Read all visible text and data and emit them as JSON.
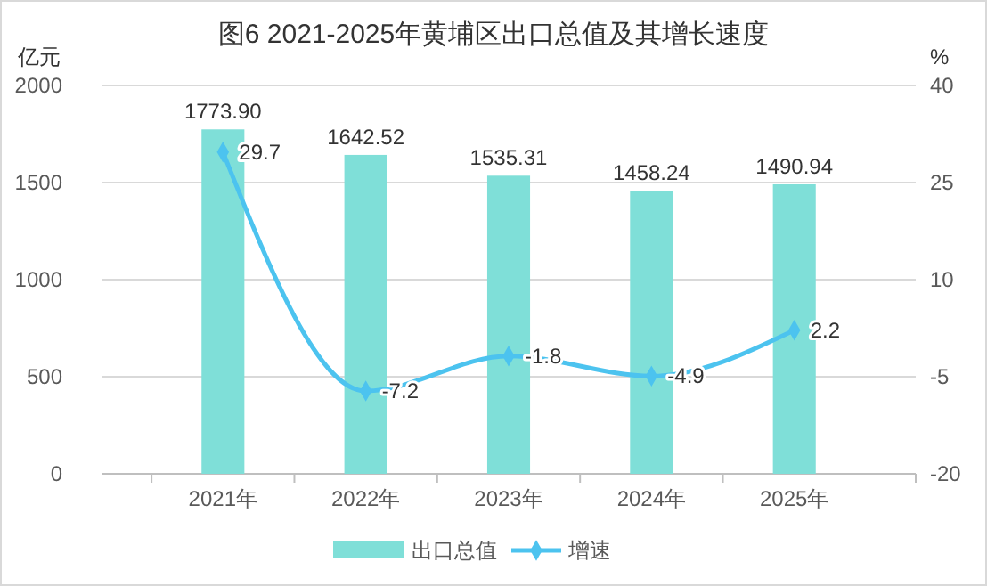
{
  "chart_data": {
    "type": "bar",
    "title": "图6  2021-2025年黄埔区出口总值及其增长速度",
    "ylabel": "亿元",
    "y2label": "%",
    "categories": [
      "2021年",
      "2022年",
      "2023年",
      "2024年",
      "2025年"
    ],
    "series": [
      {
        "name": "出口总值",
        "color": "#7fdfd8",
        "values": [
          1773.9,
          1642.52,
          1535.31,
          1458.24,
          1490.94
        ],
        "value_labels": [
          "1773.90",
          "1642.52",
          "1535.31",
          "1458.24",
          "1490.94"
        ]
      },
      {
        "name": "增速",
        "type": "line",
        "axis": "y2",
        "color": "#4cc3ef",
        "values": [
          29.7,
          -7.2,
          -1.8,
          -4.9,
          2.2
        ],
        "value_labels": [
          "29.7",
          "-7.2",
          "-1.8",
          "-4.9",
          "2.2"
        ]
      }
    ],
    "ylim": [
      0,
      2000
    ],
    "yticks": [
      0,
      500,
      1000,
      1500,
      2000
    ],
    "y2lim": [
      -20,
      40
    ],
    "y2ticks": [
      -20,
      -5,
      10,
      25,
      40
    ],
    "grid": "y",
    "legend": "bottom",
    "marker": "diamond"
  }
}
